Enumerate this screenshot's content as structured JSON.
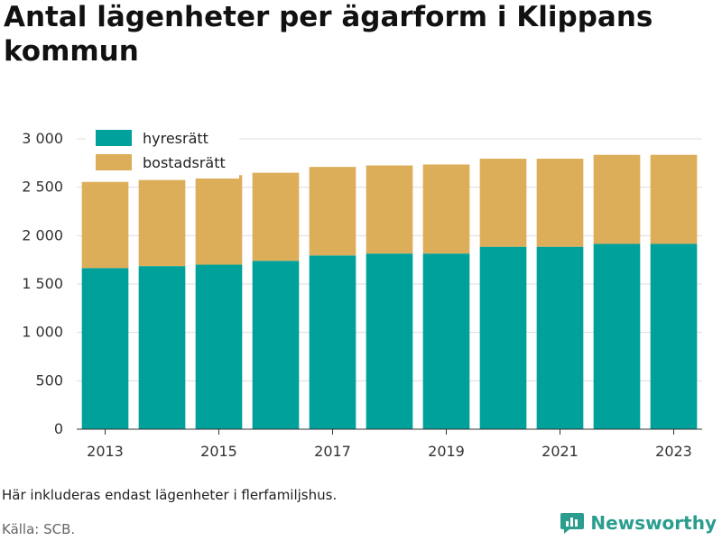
{
  "title": "Antal lägenheter per ägarform i Klippans kommun",
  "note": "Här inkluderas endast lägenheter i flerfamiljshus.",
  "source": "Källa: SCB.",
  "brand": {
    "name": "Newsworthy",
    "icon": "newsworthy-logo-icon"
  },
  "colors": {
    "hyresratt": "#00a19a",
    "bostadsratt": "#dcae5a",
    "grid": "#dddddd"
  },
  "chart_data": {
    "type": "bar",
    "stacked": true,
    "categories": [
      "2013",
      "2014",
      "2015",
      "2016",
      "2017",
      "2018",
      "2019",
      "2020",
      "2021",
      "2022",
      "2023"
    ],
    "x_tick_labels": [
      "2013",
      "2015",
      "2017",
      "2019",
      "2021",
      "2023"
    ],
    "series": [
      {
        "name": "hyresrätt",
        "color": "#00a19a",
        "values": [
          1665,
          1685,
          1700,
          1740,
          1795,
          1815,
          1815,
          1885,
          1885,
          1915,
          1915
        ]
      },
      {
        "name": "bostadsrätt",
        "color": "#dcae5a",
        "values": [
          890,
          890,
          925,
          910,
          915,
          910,
          920,
          910,
          910,
          920,
          920
        ]
      }
    ],
    "ylim": [
      0,
      3000
    ],
    "y_ticks": [
      0,
      500,
      1000,
      1500,
      2000,
      2500,
      3000
    ],
    "y_tick_labels": [
      "0",
      "500",
      "1 000",
      "1 500",
      "2 000",
      "2 500",
      "3 000"
    ],
    "grid": true,
    "legend_position": "top-left"
  }
}
